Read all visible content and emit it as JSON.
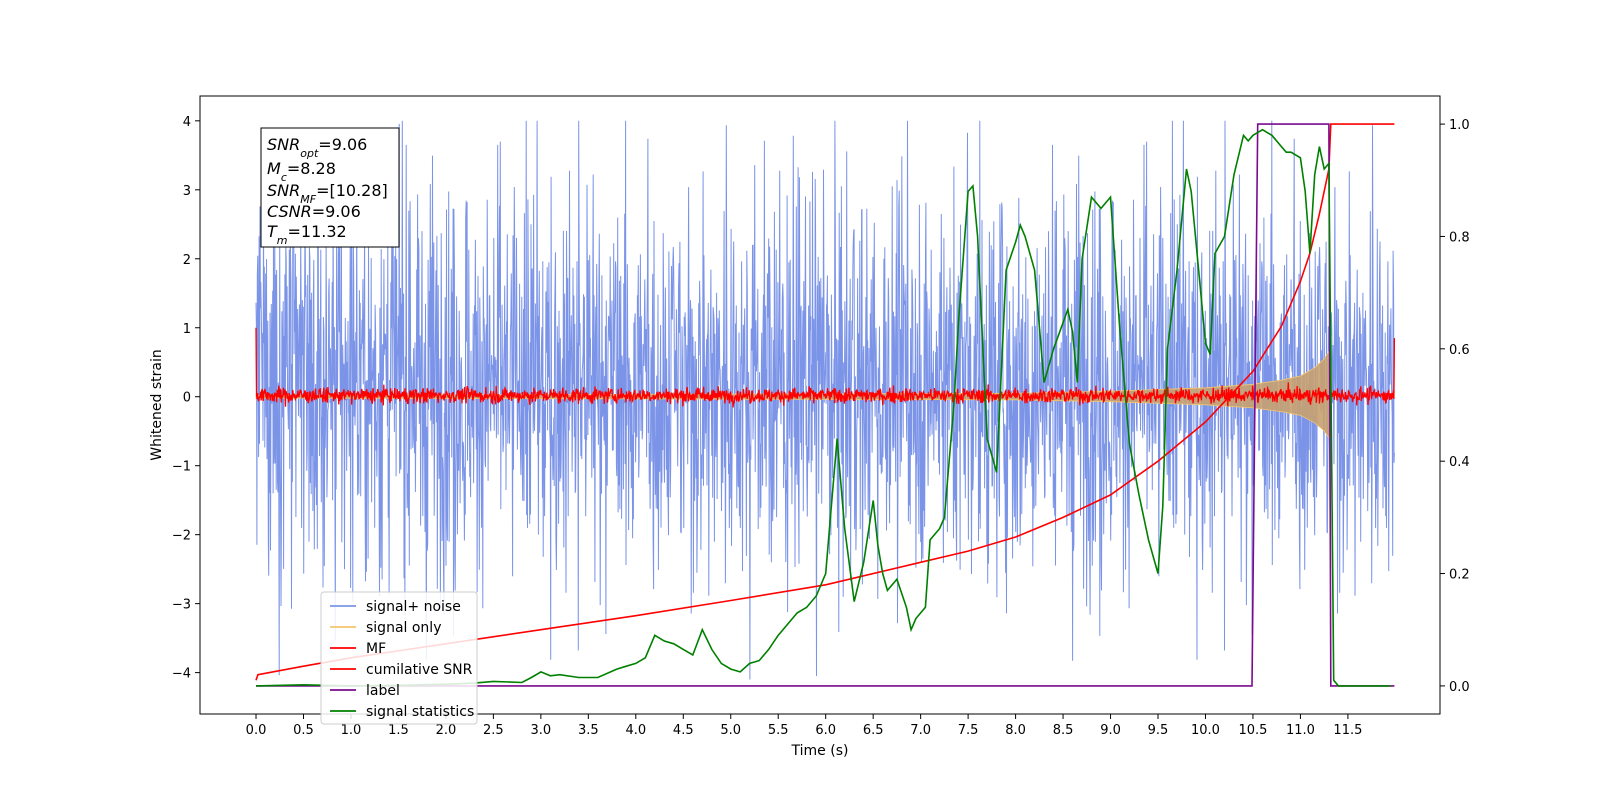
{
  "chart_data": {
    "type": "line",
    "xlabel": "Time (s)",
    "ylabel": "Whitened strain",
    "xlim": [
      -0.59,
      12.47
    ],
    "ylim": [
      -4.6,
      4.36
    ],
    "y2lim": [
      -0.05,
      1.05
    ],
    "x_ticks": [
      "0.0",
      "0.5",
      "1.0",
      "1.5",
      "2.0",
      "2.5",
      "3.0",
      "3.5",
      "4.0",
      "4.5",
      "5.0",
      "5.5",
      "6.0",
      "6.5",
      "7.0",
      "7.5",
      "8.0",
      "8.5",
      "9.0",
      "9.5",
      "10.0",
      "10.5",
      "11.0",
      "11.5"
    ],
    "y_ticks": [
      "4",
      "3",
      "2",
      "1",
      "0",
      "−1",
      "−2",
      "−3",
      "−4"
    ],
    "y2_ticks": [
      "1.0",
      "0.8",
      "0.6",
      "0.4",
      "0.2",
      "0.0"
    ],
    "annotation": {
      "snr_opt": {
        "base": "SNR",
        "sub": "opt",
        "value": "=9.06"
      },
      "mc": {
        "base": "M",
        "sub": "c",
        "value": "=8.28"
      },
      "snr_mf": {
        "base": "SNR",
        "sub": "MF",
        "value": "=[10.28]"
      },
      "csnr": {
        "base": "CSNR",
        "value": "=9.06"
      },
      "tm": {
        "base": "T",
        "sub": "m",
        "value": "=11.32"
      }
    },
    "legend": {
      "placement": "lower-left",
      "entries": [
        {
          "label": "signal+ noise",
          "color": "#7b94e8"
        },
        {
          "label": "signal only",
          "color": "#f5c66b"
        },
        {
          "label": "MF",
          "color": "#ff0000"
        },
        {
          "label": "cumilative SNR",
          "color": "#ff0000"
        },
        {
          "label": "label",
          "color": "#7b0a8f"
        },
        {
          "label": "signal statistics",
          "color": "#008000"
        }
      ]
    },
    "series": [
      {
        "name": "signal+ noise",
        "axis": "left",
        "color": "#7b94e8",
        "x_range": [
          0.0,
          11.99
        ],
        "envelope_typical": [
          -1.8,
          2.2
        ],
        "notes": "dense whitened noise trace"
      },
      {
        "name": "signal only",
        "axis": "left",
        "color": "#c8a070",
        "x": [
          0.0,
          8.0,
          9.0,
          10.0,
          10.5,
          10.8,
          11.0,
          11.15,
          11.25,
          11.32
        ],
        "amplitude": [
          0.02,
          0.05,
          0.08,
          0.13,
          0.18,
          0.24,
          0.3,
          0.42,
          0.55,
          0.7
        ]
      },
      {
        "name": "MF",
        "axis": "left",
        "color": "#ff0000",
        "x_range": [
          0.0,
          11.99
        ],
        "start_value": 1.0,
        "end_value": 0.85,
        "typical_range": [
          -0.15,
          0.2
        ]
      },
      {
        "name": "cumilative SNR",
        "axis": "right",
        "color": "#ff0000",
        "x": [
          0.0,
          0.02,
          0.5,
          1.0,
          2.0,
          3.0,
          4.0,
          5.0,
          6.0,
          7.0,
          7.5,
          8.0,
          8.5,
          9.0,
          9.5,
          10.0,
          10.5,
          10.8,
          11.0,
          11.1,
          11.2,
          11.3,
          11.32,
          11.99
        ],
        "y": [
          0.01,
          0.02,
          0.035,
          0.05,
          0.075,
          0.1,
          0.125,
          0.152,
          0.18,
          0.22,
          0.24,
          0.265,
          0.3,
          0.34,
          0.4,
          0.47,
          0.56,
          0.64,
          0.72,
          0.77,
          0.84,
          0.92,
          1.0,
          1.0
        ]
      },
      {
        "name": "label",
        "axis": "right",
        "color": "#7b0a8f",
        "x": [
          0.0,
          10.49,
          10.55,
          11.3,
          11.32,
          11.99
        ],
        "y": [
          0.0,
          0.0,
          1.0,
          1.0,
          0.0,
          0.0
        ]
      },
      {
        "name": "signal statistics",
        "axis": "right",
        "color": "#008000",
        "x": [
          0.0,
          0.5,
          1.0,
          1.5,
          2.0,
          2.3,
          2.5,
          2.8,
          2.9,
          3.0,
          3.1,
          3.2,
          3.4,
          3.6,
          3.8,
          3.9,
          4.0,
          4.1,
          4.2,
          4.3,
          4.4,
          4.5,
          4.6,
          4.7,
          4.8,
          4.9,
          5.0,
          5.1,
          5.2,
          5.3,
          5.4,
          5.5,
          5.6,
          5.7,
          5.8,
          5.9,
          6.0,
          6.05,
          6.12,
          6.2,
          6.3,
          6.4,
          6.5,
          6.55,
          6.6,
          6.65,
          6.75,
          6.85,
          6.9,
          6.95,
          7.05,
          7.1,
          7.2,
          7.25,
          7.35,
          7.4,
          7.5,
          7.55,
          7.6,
          7.7,
          7.8,
          7.9,
          8.0,
          8.05,
          8.1,
          8.2,
          8.3,
          8.4,
          8.55,
          8.6,
          8.65,
          8.7,
          8.8,
          8.9,
          9.0,
          9.1,
          9.2,
          9.3,
          9.4,
          9.5,
          9.55,
          9.6,
          9.7,
          9.8,
          9.85,
          9.9,
          10.0,
          10.05,
          10.1,
          10.2,
          10.3,
          10.4,
          10.45,
          10.5,
          10.6,
          10.7,
          10.8,
          10.85,
          10.9,
          11.0,
          11.05,
          11.1,
          11.15,
          11.2,
          11.25,
          11.3,
          11.35,
          11.4,
          11.5,
          11.95
        ],
        "y": [
          0.0,
          0.002,
          0.0,
          0.001,
          0.003,
          0.005,
          0.008,
          0.006,
          0.015,
          0.025,
          0.018,
          0.02,
          0.015,
          0.015,
          0.03,
          0.035,
          0.04,
          0.05,
          0.09,
          0.08,
          0.075,
          0.065,
          0.055,
          0.1,
          0.065,
          0.04,
          0.03,
          0.025,
          0.04,
          0.045,
          0.065,
          0.09,
          0.11,
          0.13,
          0.14,
          0.16,
          0.2,
          0.3,
          0.44,
          0.28,
          0.15,
          0.22,
          0.33,
          0.25,
          0.2,
          0.17,
          0.19,
          0.14,
          0.1,
          0.12,
          0.14,
          0.26,
          0.28,
          0.3,
          0.5,
          0.65,
          0.88,
          0.89,
          0.8,
          0.44,
          0.38,
          0.74,
          0.79,
          0.82,
          0.8,
          0.74,
          0.54,
          0.6,
          0.67,
          0.63,
          0.54,
          0.76,
          0.87,
          0.85,
          0.87,
          0.63,
          0.43,
          0.34,
          0.26,
          0.2,
          0.32,
          0.6,
          0.74,
          0.92,
          0.88,
          0.79,
          0.61,
          0.59,
          0.77,
          0.8,
          0.91,
          0.98,
          0.97,
          0.98,
          0.99,
          0.98,
          0.96,
          0.95,
          0.95,
          0.94,
          0.88,
          0.77,
          0.91,
          0.96,
          0.92,
          0.93,
          0.01,
          0.0,
          0.0,
          0.0
        ]
      }
    ]
  }
}
